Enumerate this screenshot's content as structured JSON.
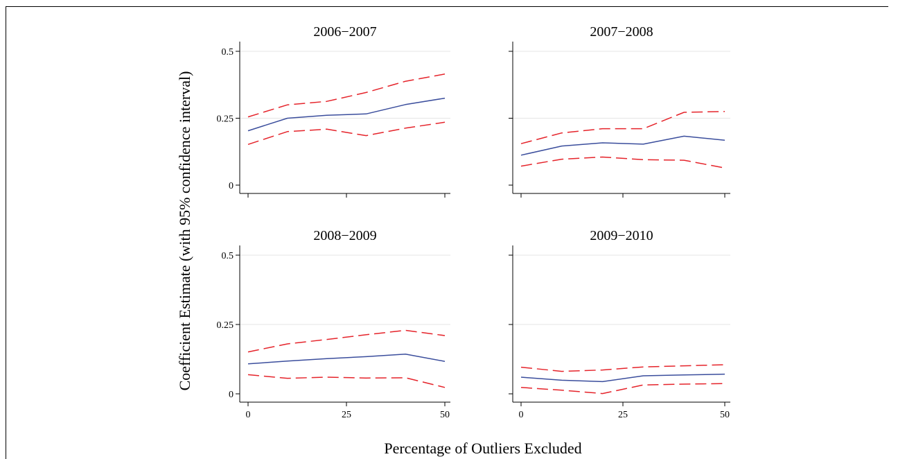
{
  "chart_data": {
    "type": "line",
    "ylabel": "Coefficient Estimate (with 95% confidence interval)",
    "xlabel": "Percentage of Outliers Excluded",
    "x": [
      0,
      10,
      20,
      30,
      40,
      50
    ],
    "xticks": [
      0,
      25,
      50
    ],
    "xtick_labels": [
      "0",
      "25",
      "50"
    ],
    "yticks": [
      0,
      0.25,
      0.5
    ],
    "ytick_labels": [
      "0",
      "0.25",
      "0.5"
    ],
    "xlim": [
      -2,
      52
    ],
    "ylim": [
      -0.035,
      0.5
    ],
    "grid": true,
    "colors": {
      "estimate": "#3a4d9c",
      "ci": "#e5232a",
      "grid": "#e6e6e6"
    },
    "panels": [
      {
        "title": "2006−2007",
        "estimate": [
          0.203,
          0.25,
          0.261,
          0.266,
          0.301,
          0.325
        ],
        "upper": [
          0.255,
          0.3,
          0.313,
          0.346,
          0.388,
          0.415
        ],
        "lower": [
          0.152,
          0.2,
          0.209,
          0.185,
          0.213,
          0.235
        ]
      },
      {
        "title": "2007−2008",
        "estimate": [
          0.112,
          0.146,
          0.158,
          0.153,
          0.183,
          0.168
        ],
        "upper": [
          0.155,
          0.195,
          0.211,
          0.211,
          0.272,
          0.275
        ],
        "lower": [
          0.071,
          0.097,
          0.105,
          0.095,
          0.093,
          0.064
        ]
      },
      {
        "title": "2008−2009",
        "estimate": [
          0.108,
          0.118,
          0.127,
          0.134,
          0.143,
          0.117
        ],
        "upper": [
          0.151,
          0.18,
          0.196,
          0.213,
          0.229,
          0.21
        ],
        "lower": [
          0.069,
          0.056,
          0.06,
          0.057,
          0.058,
          0.023
        ]
      },
      {
        "title": "2009−2010",
        "estimate": [
          0.06,
          0.049,
          0.044,
          0.065,
          0.068,
          0.071
        ],
        "upper": [
          0.096,
          0.081,
          0.086,
          0.097,
          0.101,
          0.105
        ],
        "lower": [
          0.023,
          0.013,
          0.001,
          0.032,
          0.035,
          0.037
        ]
      }
    ]
  }
}
